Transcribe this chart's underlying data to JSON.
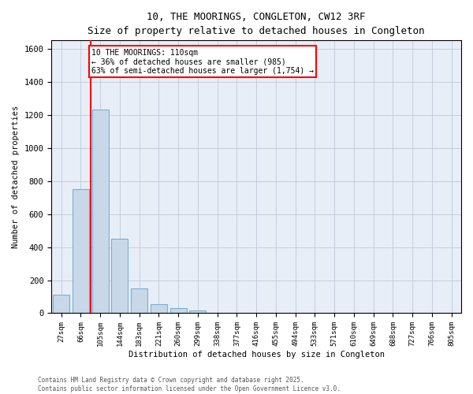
{
  "title_line1": "10, THE MOORINGS, CONGLETON, CW12 3RF",
  "title_line2": "Size of property relative to detached houses in Congleton",
  "xlabel": "Distribution of detached houses by size in Congleton",
  "ylabel": "Number of detached properties",
  "categories": [
    "27sqm",
    "66sqm",
    "105sqm",
    "144sqm",
    "183sqm",
    "221sqm",
    "260sqm",
    "299sqm",
    "338sqm",
    "377sqm",
    "416sqm",
    "455sqm",
    "494sqm",
    "533sqm",
    "571sqm",
    "610sqm",
    "649sqm",
    "688sqm",
    "727sqm",
    "766sqm",
    "805sqm"
  ],
  "values": [
    110,
    750,
    1230,
    450,
    150,
    55,
    32,
    18,
    0,
    0,
    0,
    0,
    0,
    0,
    0,
    0,
    0,
    0,
    0,
    0,
    0
  ],
  "bar_color": "#c8d8e8",
  "bar_edge_color": "#7bafd4",
  "grid_color": "#c0c8d8",
  "background_color": "#e8eef8",
  "red_line_index": 1.5,
  "annotation_text": "10 THE MOORINGS: 110sqm\n← 36% of detached houses are smaller (985)\n63% of semi-detached houses are larger (1,754) →",
  "annotation_box_color": "white",
  "annotation_border_color": "red",
  "footer_line1": "Contains HM Land Registry data © Crown copyright and database right 2025.",
  "footer_line2": "Contains public sector information licensed under the Open Government Licence v3.0.",
  "ylim": [
    0,
    1650
  ],
  "yticks": [
    0,
    200,
    400,
    600,
    800,
    1000,
    1200,
    1400,
    1600
  ]
}
